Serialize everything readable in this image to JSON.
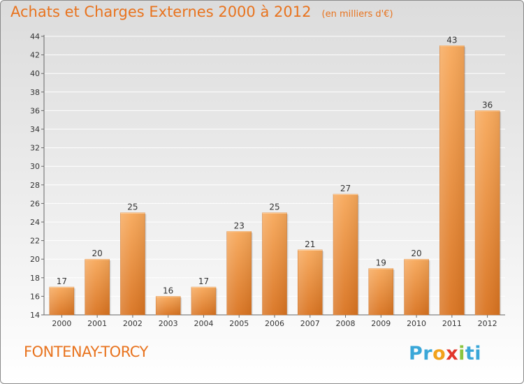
{
  "header": {
    "title": "Achats et Charges Externes 2000 à 2012",
    "subtitle": "(en milliers d'€)"
  },
  "footer": {
    "commune": "FONTENAY-TORCY",
    "logo_letters": [
      "P",
      "r",
      "o",
      "x",
      "i",
      "t",
      "i"
    ],
    "logo_colors": [
      "#3aa7d8",
      "#3aa7d8",
      "#f2a21b",
      "#e2362b",
      "#8bc43f",
      "#3aa7d8",
      "#3aa7d8"
    ]
  },
  "colors": {
    "accent": "#e8731e",
    "bar_top": "#f7a85a",
    "bar_bottom": "#d97320",
    "label": "#333333"
  },
  "chart_data": {
    "type": "bar",
    "title": "Achats et Charges Externes 2000 à 2012",
    "subtitle": "(en milliers d'€)",
    "categories": [
      "2000",
      "2001",
      "2002",
      "2003",
      "2004",
      "2005",
      "2006",
      "2007",
      "2008",
      "2009",
      "2010",
      "2011",
      "2012"
    ],
    "values": [
      17,
      20,
      25,
      16,
      17,
      23,
      25,
      21,
      27,
      19,
      20,
      43,
      36
    ],
    "ylim": [
      14,
      44
    ],
    "yticks": [
      14,
      16,
      18,
      20,
      22,
      24,
      26,
      28,
      30,
      32,
      34,
      36,
      38,
      40,
      42,
      44
    ],
    "grid": true
  }
}
